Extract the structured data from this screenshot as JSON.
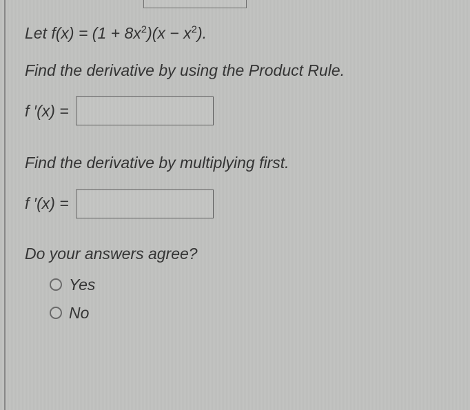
{
  "problem": {
    "definition_prefix": "Let ",
    "definition_func": "f(x)",
    "definition_eq": " = (1 + 8",
    "definition_x2a": "x",
    "definition_mid": ")(",
    "definition_xminus": "x − x",
    "definition_close": ").",
    "instruction1": "Find the derivative by using the Product Rule.",
    "fprime_label": "f ′(x) =",
    "instruction2": "Find the derivative by multiplying first.",
    "fprime_label2": "f ′(x) =",
    "agree_question": "Do your answers agree?",
    "option_yes": "Yes",
    "option_no": "No"
  },
  "style": {
    "text_color": "#343434",
    "border_color": "#606060",
    "background": "#c2c3c1",
    "input_width": 200,
    "input_height": 42,
    "font_size": 23
  }
}
